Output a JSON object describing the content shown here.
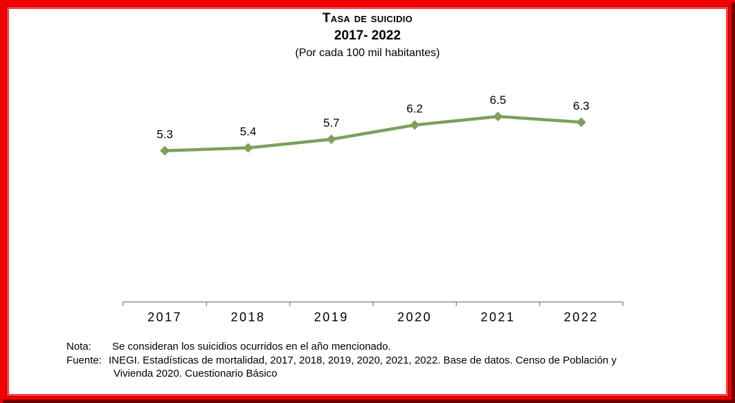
{
  "chart_data": {
    "type": "line",
    "title": "Tasa de suicidio",
    "subtitle": "2017- 2022",
    "unit_label": "(Por cada 100 mil habitantes)",
    "categories": [
      "2017",
      "2018",
      "2019",
      "2020",
      "2021",
      "2022"
    ],
    "series": [
      {
        "values": [
          5.3,
          5.4,
          5.7,
          6.2,
          6.5,
          6.3
        ]
      }
    ],
    "data_labels": [
      "5.3",
      "5.4",
      "5.7",
      "6.2",
      "6.5",
      "6.3"
    ],
    "line_color": "#7da05a",
    "grid": false,
    "legend": "none"
  },
  "notes": {
    "note_label": "Nota:",
    "note_text": "Se consideran los suicidios ocurridos en el año mencionado.",
    "source_label": "Fuente:",
    "source_text": "INEGI. Estadísticas de mortalidad, 2017, 2018, 2019, 2020, 2021, 2022. Base de datos. Censo de Población y",
    "source_text_2": "Vivienda 2020. Cuestionario Básico"
  },
  "colors": {
    "frame": "#ee0000",
    "line": "#7da05a",
    "axis": "#7f7f7f"
  }
}
